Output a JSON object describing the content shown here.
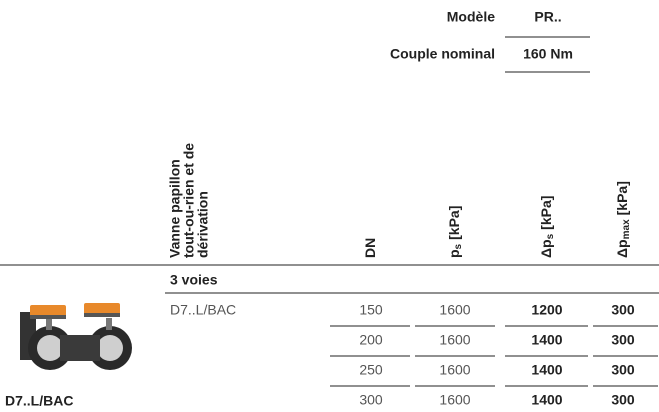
{
  "header": {
    "rows": [
      {
        "label": "Modèle",
        "value": "PR.."
      },
      {
        "label": "Couple nominal",
        "value": "160 Nm"
      }
    ]
  },
  "table": {
    "columns": [
      {
        "lines": [
          "Vanne papillon",
          "tout-ou-rien et de",
          "dérivation"
        ]
      },
      {
        "main": "DN"
      },
      {
        "main": "p",
        "sub": "s",
        "unit": "[kPa]"
      },
      {
        "main": "Δp",
        "sub": "s",
        "unit": "[kPa]"
      },
      {
        "main": "Δp",
        "sub": "max",
        "unit": "[kPa]"
      }
    ],
    "group": "3 voies",
    "product": "D7..L/BAC",
    "rows": [
      [
        150,
        1600,
        1200,
        300
      ],
      [
        200,
        1600,
        1400,
        300
      ],
      [
        250,
        1600,
        1400,
        300
      ],
      [
        300,
        1600,
        1400,
        300
      ]
    ]
  },
  "image": {
    "caption": "D7..L/BAC"
  }
}
